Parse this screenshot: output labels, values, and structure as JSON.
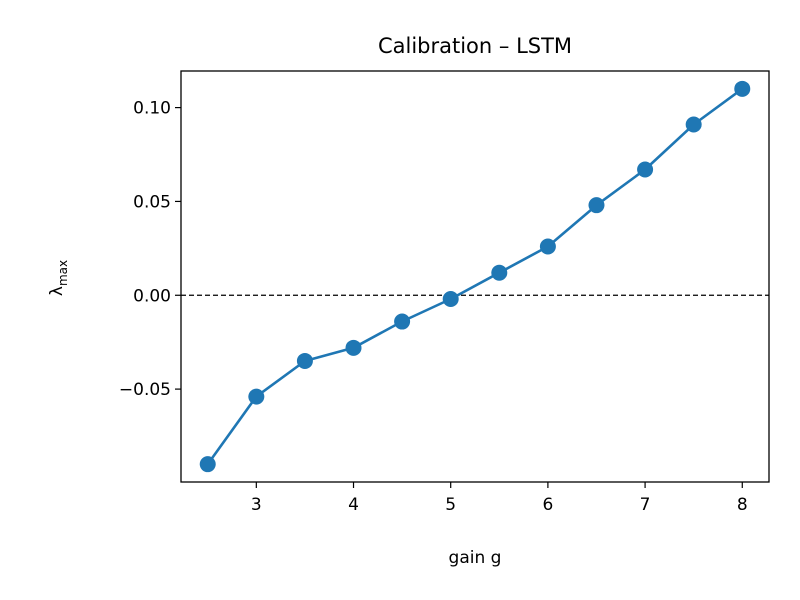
{
  "chart_data": {
    "type": "line",
    "title": "Calibration – LSTM",
    "xlabel": "gain  g",
    "ylabel": {
      "symbol": "λ",
      "subscript": "max"
    },
    "x": [
      2.5,
      3.0,
      3.5,
      4.0,
      4.5,
      5.0,
      5.5,
      6.0,
      6.5,
      7.0,
      7.5,
      8.0
    ],
    "series": [
      {
        "values": [
          -0.09,
          -0.054,
          -0.035,
          -0.028,
          -0.014,
          -0.002,
          0.012,
          0.026,
          0.048,
          0.067,
          0.091,
          0.11
        ],
        "color": "#1f77b4",
        "marker": "circle"
      }
    ],
    "xlim": [
      2.225,
      8.275
    ],
    "ylim": [
      -0.0995,
      0.1195
    ],
    "xticks": [
      3,
      4,
      5,
      6,
      7,
      8
    ],
    "xtick_labels": [
      "3",
      "4",
      "5",
      "6",
      "7",
      "8"
    ],
    "yticks": [
      -0.05,
      0.0,
      0.05,
      0.1
    ],
    "ytick_labels": [
      "−0.05",
      "0.00",
      "0.05",
      "0.10"
    ],
    "reference_line": {
      "y": 0,
      "style": "dashed",
      "color": "#000000"
    },
    "grid": false,
    "legend": "none"
  }
}
